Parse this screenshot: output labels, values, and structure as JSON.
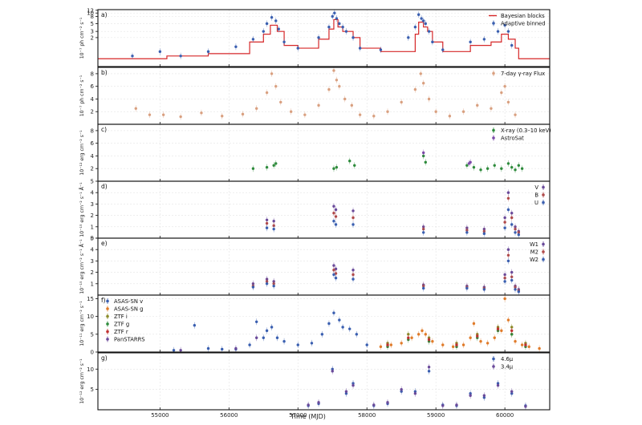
{
  "figure": {
    "xlabel": "Time (MJD)",
    "xlim": [
      54100,
      60650
    ],
    "xticks": [
      55000,
      56000,
      57000,
      58000,
      59000,
      60000
    ]
  },
  "chart_data": [
    {
      "panel": "a)",
      "type": "scatter",
      "ylabel": "10⁻⁷ ph cm⁻² s⁻¹",
      "ylim": [
        0.3,
        12.5
      ],
      "yscale": "log",
      "yticks": [
        2,
        3,
        5,
        8,
        10,
        12
      ],
      "legend": "top-right",
      "series": [
        {
          "name": "Bayesian blocks",
          "kind": "step",
          "color": "#d62728",
          "x": [
            54100,
            55100,
            55700,
            56300,
            56500,
            56600,
            56700,
            56800,
            57000,
            57300,
            57450,
            57520,
            57580,
            57650,
            57800,
            57900,
            58200,
            58700,
            58750,
            58820,
            58880,
            58950,
            59100,
            59500,
            59800,
            59950,
            60050,
            60150,
            60200
          ],
          "y": [
            0.5,
            0.6,
            0.7,
            1.5,
            2.5,
            4.5,
            3.0,
            1.2,
            1.0,
            1.8,
            3.5,
            6.5,
            4.0,
            3.0,
            2.0,
            1.0,
            0.8,
            2.5,
            5.5,
            4.0,
            3.0,
            1.5,
            0.8,
            1.2,
            1.5,
            2.5,
            1.8,
            1.0,
            0.5
          ]
        },
        {
          "name": "Adaptive binned",
          "kind": "points",
          "color": "#3a5fb0",
          "x": [
            54600,
            55000,
            55300,
            55700,
            56100,
            56350,
            56500,
            56550,
            56620,
            56680,
            56720,
            56800,
            57000,
            57300,
            57450,
            57500,
            57530,
            57560,
            57600,
            57650,
            57700,
            57800,
            57900,
            58200,
            58600,
            58700,
            58750,
            58790,
            58820,
            58850,
            58900,
            58950,
            59100,
            59500,
            59700,
            59900,
            60000,
            60050,
            60100
          ],
          "y": [
            0.6,
            0.8,
            0.6,
            0.8,
            1.1,
            1.8,
            3.0,
            5.0,
            7.5,
            6.0,
            3.5,
            1.5,
            1.0,
            2.0,
            4.0,
            8.0,
            10.0,
            7.0,
            5.0,
            4.0,
            3.0,
            2.0,
            1.0,
            0.9,
            2.0,
            4.0,
            9.0,
            7.0,
            6.0,
            5.0,
            3.0,
            1.5,
            0.9,
            1.5,
            1.8,
            3.0,
            4.5,
            3.0,
            1.2
          ]
        }
      ]
    },
    {
      "panel": "b)",
      "type": "scatter",
      "ylabel": "10⁻⁷ ph cm⁻² s⁻¹",
      "ylim": [
        0,
        9
      ],
      "yticks": [
        2,
        4,
        6,
        8
      ],
      "legend": "top-right",
      "series": [
        {
          "name": "7-day γ-ray Flux",
          "kind": "points",
          "color": "#d9a080",
          "x": [
            54650,
            54850,
            55050,
            55300,
            55600,
            55900,
            56200,
            56400,
            56550,
            56620,
            56680,
            56750,
            56900,
            57100,
            57300,
            57450,
            57520,
            57560,
            57600,
            57680,
            57780,
            57900,
            58100,
            58300,
            58500,
            58700,
            58780,
            58820,
            58900,
            59000,
            59200,
            59400,
            59600,
            59800,
            59950,
            60000,
            60050,
            60150
          ],
          "y": [
            2.5,
            1.5,
            1.5,
            1.2,
            1.8,
            1.3,
            1.6,
            2.5,
            5.0,
            8.0,
            6.0,
            3.5,
            2.0,
            1.5,
            3.0,
            5.5,
            8.5,
            7.0,
            6.0,
            4.0,
            3.0,
            1.5,
            1.3,
            2.0,
            3.5,
            5.5,
            8.0,
            6.5,
            4.0,
            2.0,
            1.3,
            2.0,
            3.0,
            2.5,
            5.0,
            6.0,
            3.5,
            1.5
          ]
        }
      ]
    },
    {
      "panel": "c)",
      "type": "scatter",
      "ylabel": "10⁻¹² erg cm⁻² s⁻¹",
      "ylim": [
        0,
        9
      ],
      "yticks": [
        2,
        4,
        6,
        8
      ],
      "legend": "top-right",
      "series": [
        {
          "name": "X-ray (0.3–10 keV)",
          "kind": "points",
          "color": "#2e8b3c",
          "x": [
            56350,
            56550,
            56650,
            56680,
            57520,
            57560,
            57750,
            57820,
            58820,
            58850,
            59450,
            59550,
            59650,
            59750,
            59850,
            59950,
            60050,
            60100,
            60150,
            60200,
            60250
          ],
          "y": [
            2.0,
            2.2,
            2.5,
            2.8,
            2.0,
            2.2,
            3.2,
            2.5,
            4.0,
            3.0,
            2.5,
            2.2,
            1.8,
            2.0,
            2.5,
            2.0,
            2.8,
            2.2,
            1.8,
            2.5,
            2.0
          ]
        },
        {
          "name": "AstroSat",
          "kind": "points",
          "color": "#7b4aa8",
          "x": [
            58820,
            59480,
            59500
          ],
          "y": [
            4.5,
            2.8,
            3.0
          ]
        }
      ]
    },
    {
      "panel": "d)",
      "type": "scatter",
      "ylabel": "10⁻¹⁵ erg cm⁻² s⁻¹ Å⁻¹",
      "ylim": [
        0,
        5
      ],
      "yticks": [
        0,
        1,
        2,
        3,
        4,
        5
      ],
      "legend": "top-right",
      "series": [
        {
          "name": "V",
          "kind": "points",
          "color": "#6a4a9a",
          "x": [
            56550,
            56650,
            57520,
            57550,
            57800,
            58820,
            59450,
            59700,
            60000,
            60050,
            60100,
            60150,
            60200
          ],
          "y": [
            1.6,
            1.5,
            2.8,
            2.5,
            2.4,
            1.0,
            0.9,
            0.8,
            1.8,
            4.0,
            2.2,
            1.0,
            0.6
          ]
        },
        {
          "name": "B",
          "kind": "points",
          "color": "#b04a4a",
          "x": [
            56550,
            56650,
            57520,
            57550,
            57800,
            58820,
            59450,
            59700,
            60000,
            60050,
            60100,
            60150,
            60200
          ],
          "y": [
            1.3,
            1.1,
            2.2,
            1.9,
            1.8,
            0.8,
            0.7,
            0.6,
            1.4,
            3.5,
            1.8,
            0.8,
            0.5
          ]
        },
        {
          "name": "U",
          "kind": "points",
          "color": "#3a5fb0",
          "x": [
            56550,
            56650,
            57520,
            57550,
            57800,
            58820,
            59450,
            59700,
            60000,
            60050,
            60100,
            60150,
            60200
          ],
          "y": [
            0.9,
            0.8,
            1.5,
            1.2,
            1.2,
            0.5,
            0.5,
            0.4,
            0.9,
            2.5,
            1.2,
            0.5,
            0.3
          ]
        }
      ]
    },
    {
      "panel": "e)",
      "type": "scatter",
      "ylabel": "10⁻¹⁵ erg cm⁻² s⁻¹ Å⁻¹",
      "ylim": [
        0,
        5
      ],
      "yticks": [
        1,
        2,
        3,
        4,
        5
      ],
      "legend": "top-right",
      "series": [
        {
          "name": "W1",
          "kind": "points",
          "color": "#6a4a9a",
          "x": [
            56350,
            56550,
            56650,
            57520,
            57550,
            57800,
            58820,
            59450,
            59700,
            60000,
            60050,
            60100,
            60150,
            60200
          ],
          "y": [
            1.0,
            1.4,
            1.2,
            2.6,
            2.3,
            2.2,
            0.9,
            0.8,
            0.7,
            1.8,
            4.0,
            2.0,
            0.8,
            0.5
          ]
        },
        {
          "name": "M2",
          "kind": "points",
          "color": "#b04a4a",
          "x": [
            56350,
            56550,
            56650,
            57520,
            57550,
            57800,
            58820,
            59450,
            59700,
            60000,
            60050,
            60100,
            60150,
            60200
          ],
          "y": [
            0.8,
            1.2,
            1.0,
            2.2,
            1.9,
            1.8,
            0.8,
            0.7,
            0.6,
            1.5,
            3.5,
            1.6,
            0.7,
            0.4
          ]
        },
        {
          "name": "W2",
          "kind": "points",
          "color": "#3a5fb0",
          "x": [
            56350,
            56550,
            56650,
            57520,
            57550,
            57800,
            58820,
            59450,
            59700,
            60000,
            60050,
            60100,
            60150,
            60200
          ],
          "y": [
            0.7,
            1.0,
            0.8,
            1.8,
            1.5,
            1.4,
            0.6,
            0.6,
            0.5,
            1.2,
            3.0,
            1.3,
            0.5,
            0.3
          ]
        }
      ]
    },
    {
      "panel": "f)",
      "type": "scatter",
      "ylabel": "10⁻¹¹ erg cm⁻² s⁻¹",
      "ylim": [
        0,
        16
      ],
      "yticks": [
        0,
        5,
        10,
        15
      ],
      "legend": "top-left",
      "series": [
        {
          "name": "ASAS-SN v",
          "kind": "points",
          "color": "#3a5fb0",
          "x": [
            55200,
            55500,
            55700,
            55900,
            56100,
            56300,
            56400,
            56500,
            56550,
            56620,
            56700,
            56800,
            57000,
            57200,
            57350,
            57450,
            57520,
            57600,
            57650,
            57750,
            57850,
            58000
          ],
          "y": [
            0.5,
            7.5,
            1.0,
            0.8,
            0.8,
            2.0,
            8.5,
            4.0,
            6.0,
            7.0,
            4.0,
            3.0,
            2.0,
            2.5,
            5.0,
            8.0,
            11.0,
            9.0,
            7.0,
            6.5,
            5.0,
            2.0
          ]
        },
        {
          "name": "ASAS-SN g",
          "kind": "points",
          "color": "#e07b2a",
          "x": [
            58200,
            58350,
            58500,
            58650,
            58750,
            58800,
            58850,
            58950,
            59100,
            59250,
            59400,
            59500,
            59550,
            59650,
            59750,
            59850,
            59950,
            60000,
            60050,
            60100,
            60150,
            60250,
            60350,
            60500
          ],
          "y": [
            1.5,
            2.0,
            2.5,
            4.0,
            5.0,
            6.0,
            5.0,
            3.0,
            2.0,
            1.5,
            2.0,
            4.0,
            8.0,
            3.0,
            2.5,
            4.0,
            6.0,
            15.0,
            9.0,
            5.0,
            3.0,
            2.0,
            1.5,
            1.0
          ]
        },
        {
          "name": "ZTF i",
          "kind": "points",
          "color": "#8c8c2a",
          "x": [
            58300,
            58600,
            58900,
            59300,
            59600,
            59900,
            60100,
            60300
          ],
          "y": [
            2.5,
            5.0,
            4.0,
            2.5,
            5.0,
            7.0,
            7.0,
            2.5
          ]
        },
        {
          "name": "ZTF g",
          "kind": "points",
          "color": "#2e8b3c",
          "x": [
            58300,
            58600,
            58900,
            59300,
            59600,
            59900,
            60100,
            60300
          ],
          "y": [
            1.5,
            3.5,
            3.0,
            1.5,
            4.0,
            6.0,
            5.0,
            1.5
          ]
        },
        {
          "name": "ZTF r",
          "kind": "points",
          "color": "#c03030",
          "x": [
            58300,
            58600,
            58900,
            59300,
            59600,
            59900,
            60100,
            60300
          ],
          "y": [
            2.0,
            4.0,
            3.5,
            2.0,
            4.5,
            6.5,
            6.0,
            2.0
          ]
        },
        {
          "name": "PanSTARRS",
          "kind": "points",
          "color": "#6a4a9a",
          "x": [
            55300,
            56100,
            56400
          ],
          "y": [
            0.5,
            1.0,
            4.0
          ]
        }
      ]
    },
    {
      "panel": "g)",
      "type": "scatter",
      "ylabel": "10⁻¹² erg cm⁻² s⁻¹",
      "ylim": [
        0,
        14
      ],
      "yticks": [
        5,
        10
      ],
      "legend": "top-right",
      "series": [
        {
          "name": "4.6μ",
          "kind": "points",
          "color": "#3a5fb0",
          "x": [
            57150,
            57300,
            57500,
            57700,
            57800,
            58100,
            58300,
            58500,
            58700,
            58900,
            59100,
            59300,
            59500,
            59700,
            59900,
            60100,
            60300
          ],
          "y": [
            1.0,
            1.5,
            10.0,
            4.0,
            6.5,
            1.0,
            1.5,
            4.5,
            4.5,
            9.5,
            1.2,
            1.0,
            4.0,
            3.0,
            6.5,
            4.0,
            1.0
          ]
        },
        {
          "name": "3.4μ",
          "kind": "points",
          "color": "#6a4a9a",
          "x": [
            57150,
            57300,
            57500,
            57700,
            57800,
            58100,
            58300,
            58500,
            58700,
            58900,
            59100,
            59300,
            59500,
            59700,
            59900,
            60100,
            60300
          ],
          "y": [
            1.2,
            1.8,
            9.5,
            4.5,
            6.0,
            1.2,
            1.8,
            5.0,
            4.0,
            10.5,
            1.0,
            1.2,
            3.5,
            3.5,
            6.0,
            4.5,
            0.8
          ]
        }
      ]
    }
  ]
}
